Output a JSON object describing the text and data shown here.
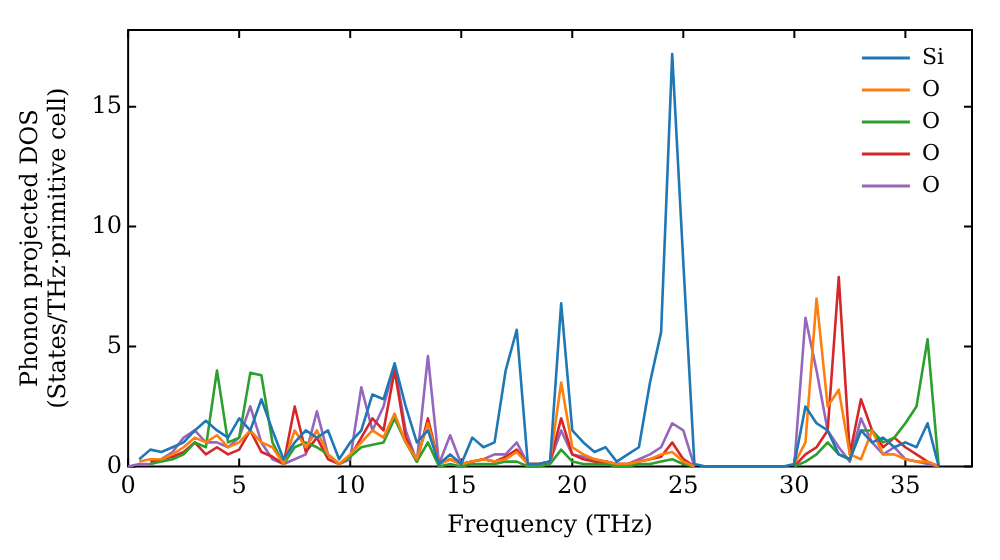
{
  "chart_data": {
    "type": "line",
    "xlabel": "Frequency (THz)",
    "ylabel": "Phonon projected DOS\n(States/THz·primitive cell)",
    "xlim": [
      0,
      38
    ],
    "xticks": [
      0,
      5,
      10,
      15,
      20,
      25,
      30,
      35
    ],
    "ylim": [
      0,
      18.2
    ],
    "yticks": [
      0,
      5,
      10,
      15
    ],
    "grid": false,
    "legend": "top right",
    "marker": "none",
    "line_style": "solid",
    "x": [
      0,
      0.5,
      1,
      1.5,
      2,
      2.5,
      3,
      3.5,
      4,
      4.5,
      5,
      5.5,
      6,
      6.5,
      7,
      7.5,
      8,
      8.5,
      9,
      9.5,
      10,
      10.5,
      11,
      11.5,
      12,
      12.5,
      13,
      13.5,
      14,
      14.5,
      15,
      15.5,
      16,
      16.5,
      17,
      17.5,
      18,
      18.5,
      19,
      19.5,
      20,
      20.5,
      21,
      21.5,
      22,
      22.5,
      23,
      23.5,
      24,
      24.5,
      25,
      25.5,
      26,
      26.5,
      27,
      27.5,
      28,
      28.5,
      29,
      29.5,
      30,
      30.5,
      31,
      31.5,
      32,
      32.5,
      33,
      33.5,
      34,
      34.5,
      35,
      35.5,
      36,
      36.5
    ],
    "series": [
      {
        "name": "Si",
        "color": "#1f77b4",
        "values": [
          null,
          0.3,
          0.7,
          0.6,
          0.8,
          1.0,
          1.5,
          1.9,
          1.5,
          1.2,
          2.0,
          1.5,
          2.8,
          1.5,
          0.3,
          1.0,
          1.5,
          1.2,
          1.5,
          0.3,
          1.0,
          1.5,
          3.0,
          2.8,
          4.3,
          2.5,
          1.0,
          1.5,
          0.1,
          0.5,
          0.1,
          1.2,
          0.8,
          1.0,
          4.0,
          5.7,
          0.1,
          0.1,
          0.2,
          6.8,
          1.5,
          1.0,
          0.6,
          0.8,
          0.2,
          0.5,
          0.8,
          3.5,
          5.6,
          17.2,
          8.5,
          0.1,
          0,
          0,
          0,
          0,
          0,
          0,
          0,
          0,
          0.1,
          2.5,
          1.8,
          1.5,
          0.5,
          0.3,
          1.5,
          1.0,
          1.2,
          0.8,
          1.0,
          0.8,
          1.8,
          0
        ]
      },
      {
        "name": "O",
        "color": "#ff7f0e",
        "values": [
          null,
          0.2,
          0.3,
          0.3,
          0.5,
          0.8,
          1.2,
          1.0,
          1.3,
          0.8,
          1.0,
          1.5,
          1.0,
          0.8,
          0.1,
          1.5,
          0.8,
          1.5,
          0.5,
          0.1,
          0.5,
          1.0,
          1.5,
          1.2,
          2.2,
          1.0,
          0.3,
          1.8,
          0.1,
          0.3,
          0.1,
          0.2,
          0.3,
          0.2,
          0.3,
          0.6,
          0.1,
          0.1,
          0.2,
          3.5,
          0.8,
          0.5,
          0.3,
          0.2,
          0.1,
          0.1,
          0.2,
          0.3,
          0.5,
          0.6,
          0.2,
          0,
          null,
          null,
          null,
          null,
          null,
          null,
          null,
          null,
          0.1,
          1.0,
          7.0,
          2.5,
          3.2,
          0.5,
          0.3,
          1.5,
          0.5,
          0.5,
          0.3,
          0.2,
          0.2,
          0
        ]
      },
      {
        "name": "O",
        "color": "#2ca02c",
        "values": [
          null,
          null,
          0.1,
          0.2,
          0.3,
          0.5,
          1.0,
          0.8,
          4.0,
          1.0,
          1.2,
          3.9,
          3.8,
          1.0,
          0.1,
          0.8,
          1.0,
          0.8,
          0.5,
          0.1,
          0.4,
          0.8,
          0.9,
          1.0,
          2.0,
          1.0,
          0.2,
          1.0,
          0,
          0.1,
          0,
          0.1,
          0.1,
          0.1,
          0.2,
          0.2,
          0,
          0,
          0.1,
          0.7,
          0.2,
          0.1,
          0.1,
          0.1,
          0,
          0,
          0.1,
          0.1,
          0.2,
          0.3,
          0.1,
          0,
          null,
          null,
          null,
          null,
          null,
          null,
          null,
          null,
          0,
          0.2,
          0.5,
          1.0,
          0.5,
          0.3,
          1.5,
          1.5,
          1.0,
          1.2,
          1.8,
          2.5,
          5.3,
          0
        ]
      },
      {
        "name": "O",
        "color": "#d62728",
        "values": [
          null,
          null,
          0.2,
          0.3,
          0.4,
          0.6,
          1.0,
          0.5,
          0.8,
          0.5,
          0.7,
          1.5,
          0.6,
          0.4,
          0.1,
          2.5,
          0.6,
          1.2,
          0.3,
          0.1,
          0.4,
          1.2,
          2.0,
          1.5,
          4.0,
          1.2,
          0.2,
          2.0,
          0.1,
          0.3,
          0.1,
          0.2,
          0.3,
          0.2,
          0.4,
          0.7,
          0.1,
          0.1,
          0.2,
          2.0,
          0.5,
          0.3,
          0.2,
          0.2,
          0.1,
          0.1,
          0.2,
          0.3,
          0.4,
          1.0,
          0.3,
          0,
          null,
          null,
          null,
          null,
          null,
          null,
          null,
          null,
          0,
          0.5,
          0.8,
          1.5,
          7.9,
          0.5,
          2.8,
          1.5,
          0.8,
          1.2,
          0.8,
          0.5,
          0.2,
          0
        ]
      },
      {
        "name": "O",
        "color": "#9467bd",
        "values": [
          0,
          0.1,
          0.1,
          0.3,
          0.6,
          1.2,
          1.5,
          1.0,
          1.0,
          0.8,
          1.2,
          2.5,
          1.0,
          0.3,
          0.1,
          0.3,
          0.5,
          2.3,
          0.5,
          0.1,
          0.3,
          3.3,
          1.5,
          2.5,
          4.2,
          1.5,
          0.2,
          4.6,
          0.1,
          1.3,
          0.1,
          0.2,
          0.3,
          0.5,
          0.5,
          1.0,
          0.1,
          0.1,
          0.2,
          1.5,
          0.5,
          0.4,
          0.3,
          0.2,
          0.1,
          0.1,
          0.3,
          0.5,
          0.8,
          1.8,
          1.5,
          0,
          null,
          null,
          null,
          null,
          null,
          null,
          null,
          null,
          0.1,
          6.2,
          4.0,
          1.5,
          0.8,
          0.2,
          2.0,
          1.0,
          0.5,
          0.8,
          0.3,
          0.2,
          0.1,
          0
        ]
      }
    ]
  }
}
